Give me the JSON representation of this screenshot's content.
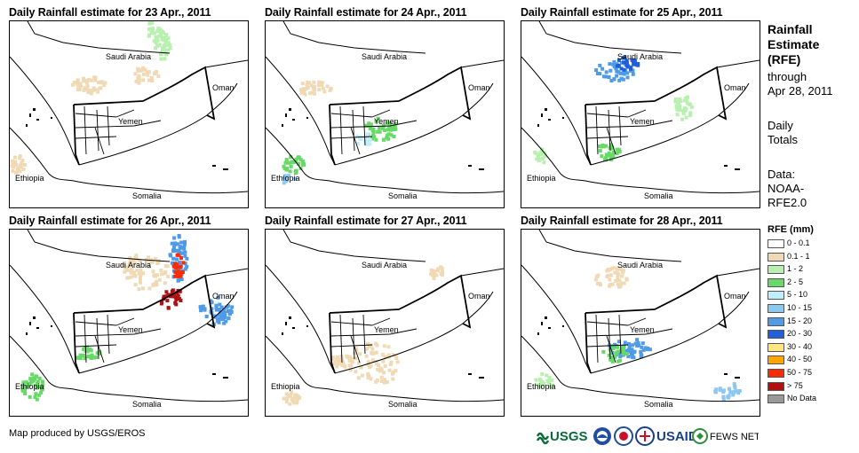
{
  "panels": [
    {
      "title": "Daily Rainfall estimate for 23 Apr., 2011"
    },
    {
      "title": "Daily Rainfall estimate for 24 Apr., 2011"
    },
    {
      "title": "Daily Rainfall estimate for 25 Apr., 2011"
    },
    {
      "title": "Daily Rainfall estimate for 26 Apr., 2011"
    },
    {
      "title": "Daily Rainfall estimate for 27 Apr., 2011"
    },
    {
      "title": "Daily Rainfall estimate for 28 Apr., 2011"
    }
  ],
  "map_labels": {
    "saudi": "Saudi Arabia",
    "oman": "Oman",
    "yemen": "Yemen",
    "ethiopia": "Ethiopia",
    "somalia": "Somalia"
  },
  "sidebar": {
    "title_line1": "Rainfall",
    "title_line2": "Estimate",
    "title_line3": "(RFE)",
    "through": "through",
    "date": "Apr 28, 2011",
    "daily": "Daily",
    "totals": "Totals",
    "data_label": "Data:",
    "source1": "NOAA-",
    "source2": "RFE2.0"
  },
  "legend": {
    "title": "RFE (mm)",
    "items": [
      {
        "label": "0 - 0.1",
        "color": "#ffffff"
      },
      {
        "label": "0.1 - 1",
        "color": "#f0d9b5"
      },
      {
        "label": "1 - 2",
        "color": "#b8f0b0"
      },
      {
        "label": "2 - 5",
        "color": "#66d966"
      },
      {
        "label": "5 - 10",
        "color": "#bfefff"
      },
      {
        "label": "10 - 15",
        "color": "#8cc8f0"
      },
      {
        "label": "15 - 20",
        "color": "#4f9be8"
      },
      {
        "label": "20 - 30",
        "color": "#1f5fd9"
      },
      {
        "label": "30 - 40",
        "color": "#ffe680"
      },
      {
        "label": "40 - 50",
        "color": "#ffa500"
      },
      {
        "label": "50 - 75",
        "color": "#ff2a00"
      },
      {
        "label": "> 75",
        "color": "#b01010"
      },
      {
        "label": "No Data",
        "color": "#999999"
      }
    ]
  },
  "credit": "Map produced by USGS/EROS",
  "logos": {
    "usgs": "USGS",
    "usaid": "USAID",
    "fewsnet": "FEWS NET"
  }
}
